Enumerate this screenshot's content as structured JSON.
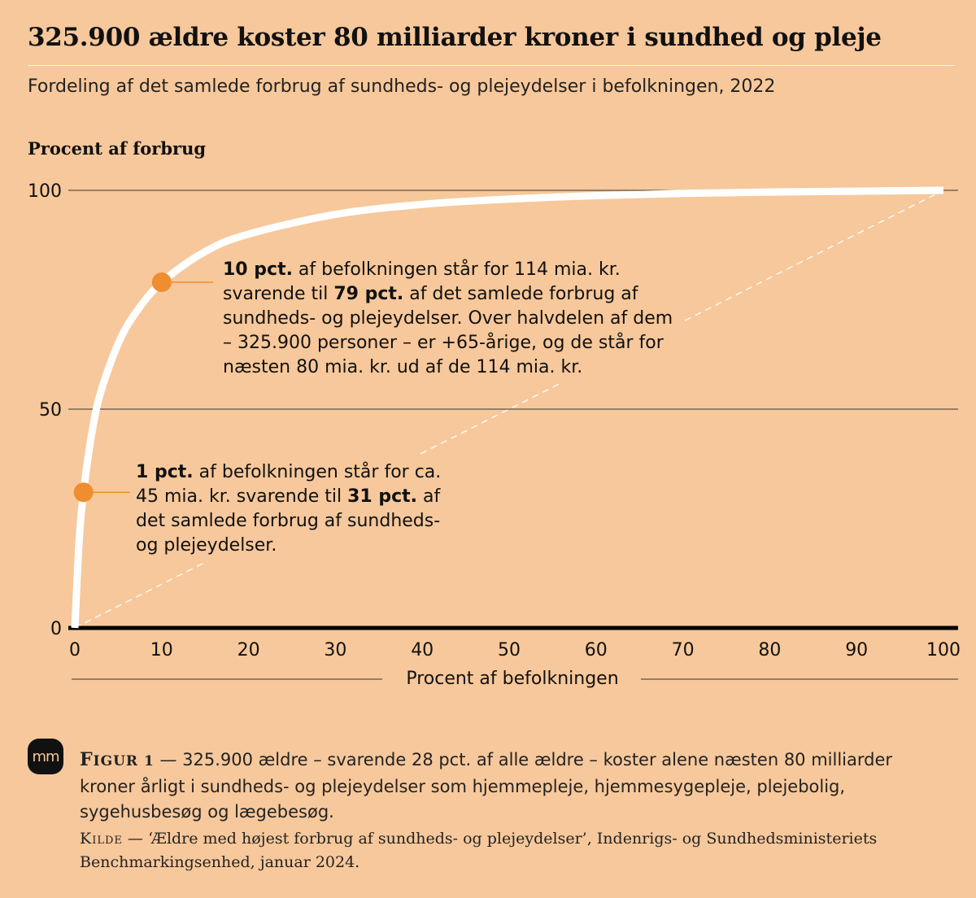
{
  "header": {
    "title": "325.900 ældre koster 80 milliarder kroner i sundhed og pleje",
    "subtitle": "Fordeling af det samlede forbrug af sundheds- og plejeydelser i befolkningen, 2022"
  },
  "chart_data": {
    "type": "line",
    "ylabel": "Procent af forbrug",
    "xlabel": "Procent af befolkningen",
    "xlim": [
      0,
      100
    ],
    "ylim": [
      0,
      100
    ],
    "x_ticks": [
      "0",
      "10",
      "20",
      "30",
      "40",
      "50",
      "60",
      "70",
      "80",
      "90",
      "100"
    ],
    "y_ticks": [
      "0",
      "50",
      "100"
    ],
    "grid": "horizontal",
    "series": [
      {
        "color": "#ffffff",
        "x": [
          0,
          0.5,
          1,
          2,
          3,
          5,
          7,
          10,
          15,
          20,
          30,
          40,
          50,
          60,
          70,
          80,
          90,
          100
        ],
        "y": [
          0,
          20,
          31,
          45,
          54,
          65,
          72,
          79,
          86,
          90,
          94.5,
          96.8,
          98,
          98.8,
          99.3,
          99.6,
          99.8,
          100
        ]
      },
      {
        "style": "dashed",
        "color": "#ffffff",
        "x": [
          0,
          100
        ],
        "y": [
          0,
          100
        ]
      }
    ],
    "highlights": [
      {
        "x": 1,
        "y": 31,
        "color": "#f08d30"
      },
      {
        "x": 10,
        "y": 79,
        "color": "#f08d30"
      }
    ]
  },
  "annotations": {
    "a10": {
      "b1": "10 pct.",
      "t1": " af befolkningen står for 114 mia. kr. svarende til ",
      "b2": "79 pct.",
      "t2": " af det samlede forbrug af sundheds- og plejeydelser. Over halvdelen af dem – 325.900 personer – er +65-årige, og de står for næsten 80 mia. kr. ud af de 114 mia. kr."
    },
    "a1": {
      "b1": "1 pct.",
      "t1": " af befolkningen står for ca. 45 mia. kr. svarende til ",
      "b2": "31 pct.",
      "t2": " af det samlede forbrug af sundheds- og plejeydelser."
    }
  },
  "footer": {
    "logo": "mm",
    "figure_label_initial": "F",
    "figure_label_rest": "IGUR 1",
    "figure_text": " — 325.900 ældre – svarende 28 pct. af alle ældre – koster alene næsten 80 milliarder kroner årligt i sundheds- og plejeydelser som hjemmepleje, hjemmesygepleje, plejebolig, sygehusbesøg og lægebesøg.",
    "source_label": "Kilde",
    "source_title": "‘Ældre med højest forbrug af sundheds- og plejeydelser’",
    "source_text": ", Indenrigs- og Sundhedsministeriets Benchmarkingsenhed, januar 2024."
  }
}
